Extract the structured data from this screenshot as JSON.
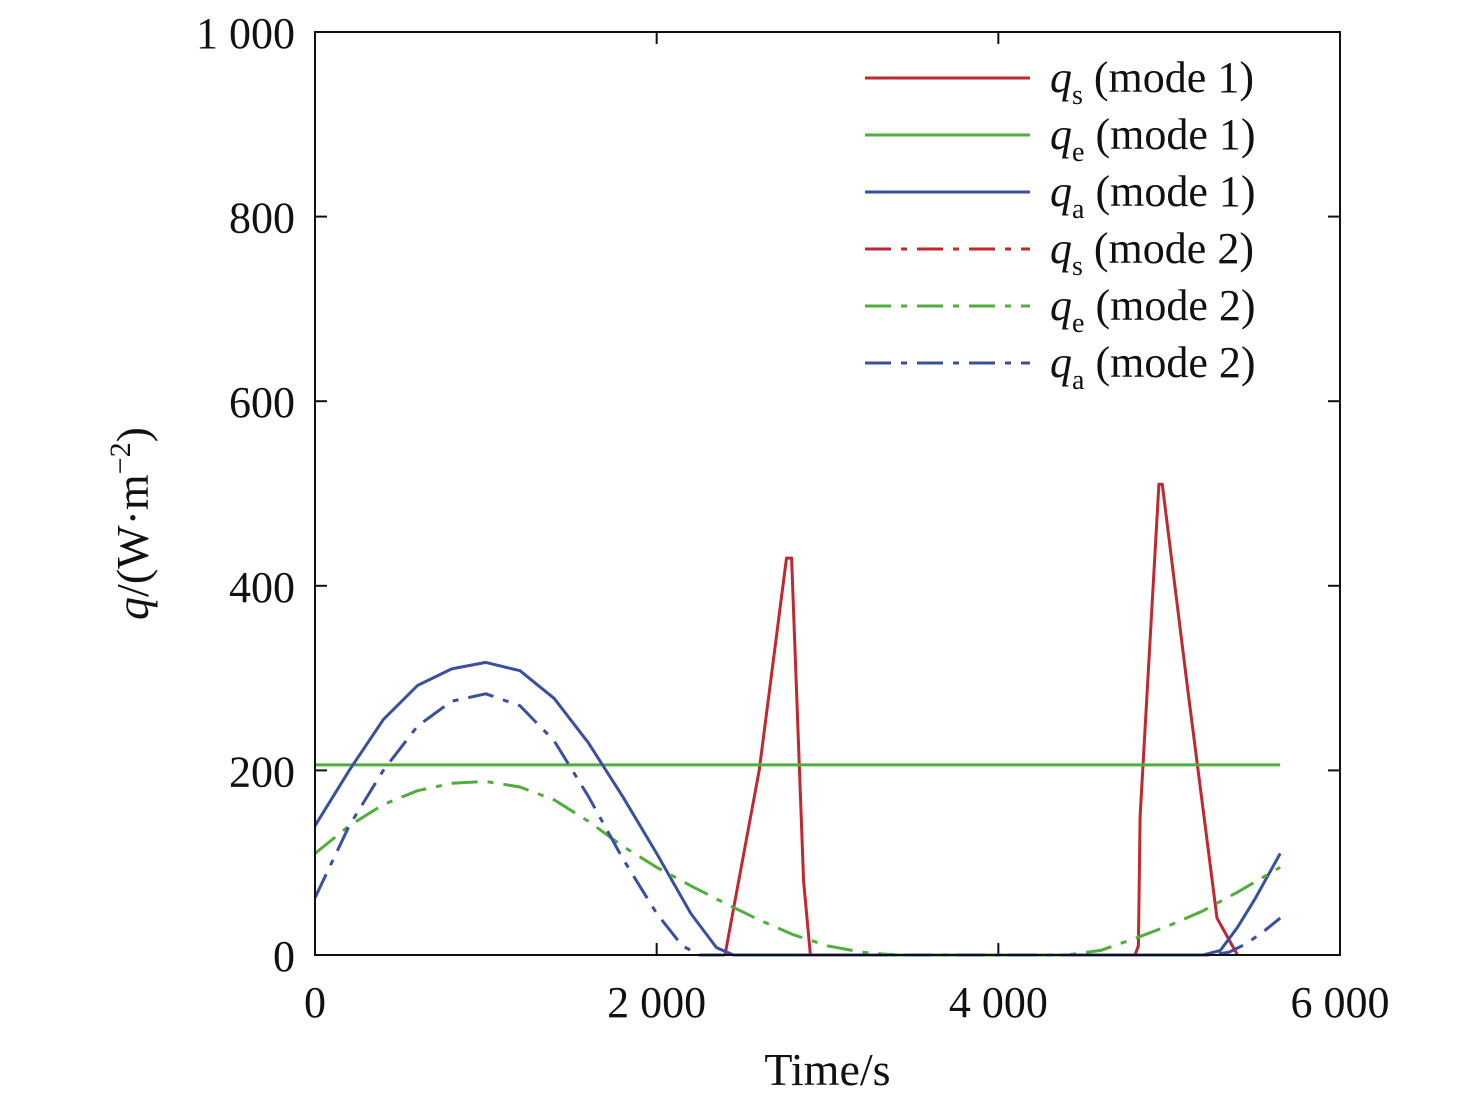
{
  "chart_data": {
    "type": "line",
    "title": "",
    "xlabel": "Time/s",
    "ylabel": "q/(W·m⁻²)",
    "ylabel_parts": {
      "symbol": "q",
      "unit_open": "/(W·m",
      "unit_exp": "−2",
      "unit_close": ")"
    },
    "xlim": [
      0,
      6000
    ],
    "ylim": [
      0,
      1000
    ],
    "x_ticks": [
      0,
      2000,
      4000,
      6000
    ],
    "x_tick_labels": [
      "0",
      "2 000",
      "4 000",
      "6 000"
    ],
    "y_ticks": [
      0,
      200,
      400,
      600,
      800,
      1000
    ],
    "y_tick_labels": [
      "0",
      "200",
      "400",
      "600",
      "800",
      "1 000"
    ],
    "grid": false,
    "legend_position": "top-right",
    "series": [
      {
        "name": "qs (mode 1)",
        "symbol": "q",
        "sub": "s",
        "mode_label": " (mode 1)",
        "color": "#c0282f",
        "dash": "solid",
        "points": [
          [
            2400,
            0
          ],
          [
            2450,
            50
          ],
          [
            2600,
            200
          ],
          [
            2760,
            430
          ],
          [
            2790,
            430
          ],
          [
            2860,
            80
          ],
          [
            2900,
            0
          ],
          [
            4800,
            0
          ],
          [
            4820,
            10
          ],
          [
            4830,
            150
          ],
          [
            4940,
            510
          ],
          [
            4960,
            510
          ],
          [
            5100,
            300
          ],
          [
            5280,
            40
          ],
          [
            5400,
            0
          ]
        ]
      },
      {
        "name": "qe (mode 1)",
        "symbol": "q",
        "sub": "e",
        "mode_label": " (mode 1)",
        "color": "#4fae3c",
        "dash": "solid",
        "points": [
          [
            0,
            206
          ],
          [
            5650,
            206
          ]
        ]
      },
      {
        "name": "qa (mode 1)",
        "symbol": "q",
        "sub": "a",
        "mode_label": " (mode 1)",
        "color": "#3a4f9f",
        "dash": "solid",
        "points": [
          [
            0,
            140
          ],
          [
            200,
            200
          ],
          [
            400,
            255
          ],
          [
            600,
            292
          ],
          [
            800,
            310
          ],
          [
            1000,
            317
          ],
          [
            1200,
            308
          ],
          [
            1400,
            278
          ],
          [
            1600,
            230
          ],
          [
            1800,
            172
          ],
          [
            2000,
            110
          ],
          [
            2200,
            45
          ],
          [
            2350,
            8
          ],
          [
            2450,
            0
          ],
          [
            2550,
            0
          ],
          [
            5200,
            0
          ],
          [
            5300,
            5
          ],
          [
            5400,
            30
          ],
          [
            5500,
            60
          ],
          [
            5650,
            110
          ]
        ]
      },
      {
        "name": "qs (mode 2)",
        "symbol": "q",
        "sub": "s",
        "mode_label": " (mode 2)",
        "color": "#c0282f",
        "dash": "dashdot",
        "points": []
      },
      {
        "name": "qe (mode 2)",
        "symbol": "q",
        "sub": "e",
        "mode_label": " (mode 2)",
        "color": "#4fae3c",
        "dash": "dashdot",
        "points": [
          [
            0,
            110
          ],
          [
            200,
            140
          ],
          [
            400,
            163
          ],
          [
            600,
            178
          ],
          [
            800,
            186
          ],
          [
            1000,
            188
          ],
          [
            1200,
            182
          ],
          [
            1400,
            168
          ],
          [
            1600,
            145
          ],
          [
            1800,
            118
          ],
          [
            2000,
            95
          ],
          [
            2200,
            75
          ],
          [
            2400,
            56
          ],
          [
            2600,
            38
          ],
          [
            2800,
            22
          ],
          [
            3000,
            10
          ],
          [
            3200,
            3
          ],
          [
            3400,
            0
          ],
          [
            4400,
            0
          ],
          [
            4600,
            5
          ],
          [
            4800,
            18
          ],
          [
            5000,
            32
          ],
          [
            5200,
            48
          ],
          [
            5400,
            68
          ],
          [
            5650,
            95
          ]
        ]
      },
      {
        "name": "qa (mode 2)",
        "symbol": "q",
        "sub": "a",
        "mode_label": " (mode 2)",
        "color": "#3a4f9f",
        "dash": "dashdot",
        "points": [
          [
            0,
            62
          ],
          [
            200,
            140
          ],
          [
            400,
            200
          ],
          [
            600,
            248
          ],
          [
            800,
            275
          ],
          [
            1000,
            283
          ],
          [
            1200,
            270
          ],
          [
            1400,
            232
          ],
          [
            1600,
            172
          ],
          [
            1800,
            105
          ],
          [
            2000,
            45
          ],
          [
            2150,
            10
          ],
          [
            2250,
            0
          ],
          [
            5250,
            0
          ],
          [
            5350,
            3
          ],
          [
            5450,
            12
          ],
          [
            5550,
            25
          ],
          [
            5650,
            40
          ]
        ]
      }
    ]
  }
}
